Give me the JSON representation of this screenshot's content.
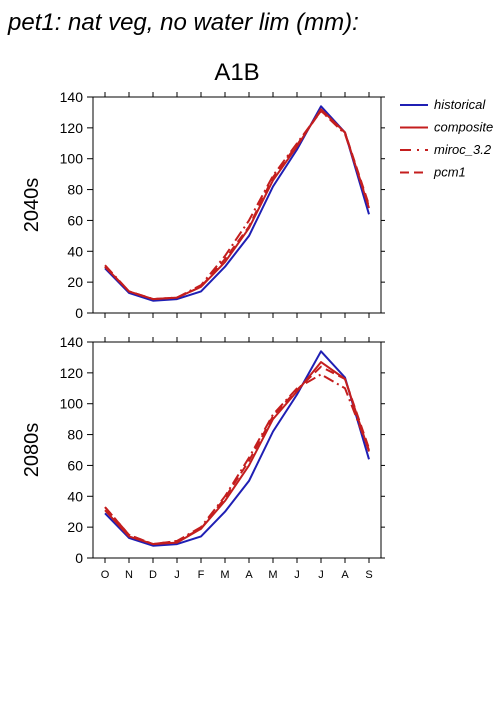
{
  "figure": {
    "title": "pet1: nat veg, no water lim (mm):",
    "column_title": "A1B"
  },
  "colors": {
    "historical": "#1f1fb4",
    "composite": "#c41e1e",
    "miroc_3.2": "#c41e1e",
    "pcm1": "#c41e1e"
  },
  "chart_data": [
    {
      "type": "line",
      "title": "",
      "row_label": "2040s",
      "categories": [
        "O",
        "N",
        "D",
        "J",
        "F",
        "M",
        "A",
        "M",
        "J",
        "J",
        "A",
        "S"
      ],
      "ylim": [
        0,
        140
      ],
      "yticks": [
        0,
        20,
        40,
        60,
        80,
        100,
        120,
        140
      ],
      "grid": false,
      "legend": "right",
      "series": [
        {
          "name": "historical",
          "style": "solid",
          "color": "#1f1fb4",
          "values": [
            29,
            13,
            8,
            9,
            14,
            30,
            50,
            82,
            106,
            134,
            117,
            64
          ]
        },
        {
          "name": "composite",
          "style": "solid",
          "color": "#c41e1e",
          "values": [
            30,
            14,
            9,
            10,
            17,
            33,
            55,
            86,
            108,
            132,
            117,
            68
          ]
        },
        {
          "name": "miroc_3.2",
          "style": "dashdot",
          "color": "#c41e1e",
          "values": [
            31,
            14,
            9,
            10,
            18,
            37,
            60,
            89,
            110,
            131,
            116,
            69
          ]
        },
        {
          "name": "pcm1",
          "style": "dashed",
          "color": "#c41e1e",
          "values": [
            30,
            14,
            9,
            10,
            17,
            35,
            56,
            88,
            109,
            131,
            117,
            70
          ]
        }
      ]
    },
    {
      "type": "line",
      "title": "",
      "row_label": "2080s",
      "categories": [
        "O",
        "N",
        "D",
        "J",
        "F",
        "M",
        "A",
        "M",
        "J",
        "J",
        "A",
        "S"
      ],
      "ylim": [
        0,
        140
      ],
      "yticks": [
        0,
        20,
        40,
        60,
        80,
        100,
        120,
        140
      ],
      "grid": false,
      "legend": "right",
      "series": [
        {
          "name": "historical",
          "style": "solid",
          "color": "#1f1fb4",
          "values": [
            29,
            13,
            8,
            9,
            14,
            30,
            50,
            82,
            106,
            134,
            117,
            64
          ]
        },
        {
          "name": "composite",
          "style": "solid",
          "color": "#c41e1e",
          "values": [
            31,
            14,
            9,
            10,
            19,
            37,
            60,
            90,
            108,
            127,
            116,
            69
          ]
        },
        {
          "name": "miroc_3.2",
          "style": "dashdot",
          "color": "#c41e1e",
          "values": [
            33,
            15,
            9,
            11,
            20,
            40,
            65,
            93,
            110,
            119,
            110,
            70
          ]
        },
        {
          "name": "pcm1",
          "style": "dashed",
          "color": "#c41e1e",
          "values": [
            33,
            15,
            9,
            11,
            19,
            39,
            63,
            92,
            109,
            124,
            116,
            71
          ]
        }
      ]
    }
  ]
}
